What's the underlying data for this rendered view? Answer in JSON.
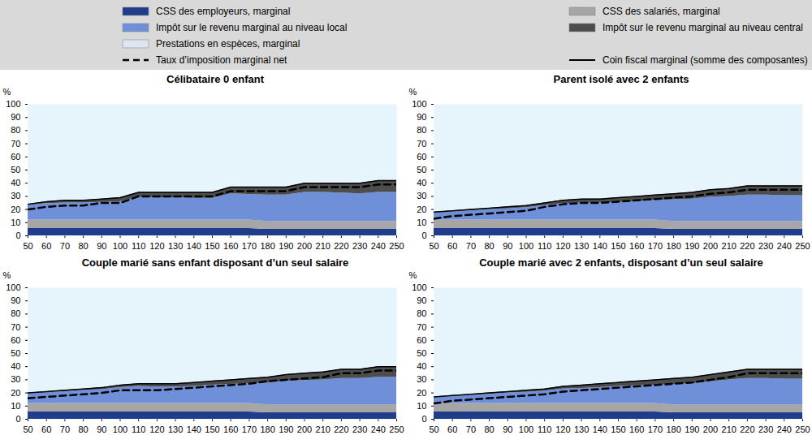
{
  "chart_data": [
    {
      "type": "area",
      "title": "Célibataire 0 enfant",
      "stacked": true,
      "grid": false,
      "y_label": "%",
      "x": [
        50,
        60,
        70,
        80,
        90,
        100,
        110,
        120,
        130,
        140,
        150,
        160,
        170,
        180,
        190,
        200,
        210,
        220,
        230,
        240,
        250
      ],
      "xlim": [
        50,
        250
      ],
      "xticks": [
        50,
        60,
        70,
        80,
        90,
        100,
        110,
        120,
        130,
        140,
        150,
        160,
        170,
        180,
        190,
        200,
        210,
        220,
        230,
        240,
        250
      ],
      "ylim": [
        0,
        100
      ],
      "yticks": [
        0,
        10,
        20,
        30,
        40,
        50,
        60,
        70,
        80,
        90,
        100
      ],
      "series": [
        {
          "name": "CSS des employeurs, marginal",
          "type": "area",
          "color": "#1f3d8a",
          "values": [
            5.5,
            5.5,
            5.5,
            5.5,
            5.5,
            5.5,
            5.5,
            5.5,
            5.5,
            5.5,
            5.5,
            5.5,
            5.5,
            5,
            5,
            5,
            5,
            5,
            5,
            5,
            5
          ]
        },
        {
          "name": "CSS des salariés, marginal",
          "type": "area",
          "color": "#a6a6a6",
          "values": [
            6.5,
            6.5,
            6.5,
            6.5,
            6.5,
            6.5,
            6.5,
            6.5,
            6.5,
            6.5,
            6.5,
            6.5,
            6.5,
            6,
            6,
            6,
            6,
            6,
            6,
            6,
            6
          ]
        },
        {
          "name": "Impôt sur le revenu marginal au niveau local",
          "type": "area",
          "color": "#6f8fd8",
          "values": [
            11,
            12.5,
            13,
            13,
            13.5,
            14,
            17.5,
            17,
            17,
            16.5,
            16.5,
            20,
            19.5,
            20,
            20,
            22,
            22,
            21.5,
            21,
            22,
            22
          ]
        },
        {
          "name": "Impôt sur le revenu marginal au niveau central",
          "type": "area",
          "color": "#4d4d4d",
          "values": [
            1,
            1.5,
            2,
            2,
            2.5,
            3,
            3.5,
            4,
            4,
            4.5,
            4.5,
            5,
            5.5,
            6,
            6,
            7,
            7,
            7.5,
            8,
            9,
            9
          ]
        },
        {
          "name": "Prestations en espèces, marginal",
          "type": "area",
          "color": "#dde4f2",
          "values": [
            0,
            0,
            0,
            0,
            0,
            0,
            0,
            0,
            0,
            0,
            0,
            0,
            0,
            0,
            0,
            0,
            0,
            0,
            0,
            0,
            0
          ]
        },
        {
          "name": "Taux d’imposition marginal net",
          "type": "line",
          "line_style": "dashed",
          "color": "#000000",
          "values": [
            20,
            22,
            23,
            23,
            25,
            25,
            30,
            30,
            30,
            30,
            30,
            34,
            34,
            34,
            34,
            37,
            37,
            37,
            37,
            39,
            39
          ]
        },
        {
          "name": "Coin fiscal marginal (somme des composantes)",
          "type": "line",
          "line_style": "solid",
          "color": "#000000",
          "values": [
            24,
            26,
            27,
            27,
            28,
            29,
            33,
            33,
            33,
            33,
            33,
            37,
            37,
            37,
            37,
            40,
            40,
            40,
            40,
            42,
            42
          ]
        }
      ]
    },
    {
      "type": "area",
      "title": "Parent isolé avec 2 enfants",
      "stacked": true,
      "grid": false,
      "y_label": "%",
      "x": [
        50,
        60,
        70,
        80,
        90,
        100,
        110,
        120,
        130,
        140,
        150,
        160,
        170,
        180,
        190,
        200,
        210,
        220,
        230,
        240,
        250
      ],
      "xlim": [
        50,
        250
      ],
      "xticks": [
        50,
        60,
        70,
        80,
        90,
        100,
        110,
        120,
        130,
        140,
        150,
        160,
        170,
        180,
        190,
        200,
        210,
        220,
        230,
        240,
        250
      ],
      "ylim": [
        0,
        100
      ],
      "yticks": [
        0,
        10,
        20,
        30,
        40,
        50,
        60,
        70,
        80,
        90,
        100
      ],
      "series": [
        {
          "name": "CSS des employeurs, marginal",
          "type": "area",
          "color": "#1f3d8a",
          "values": [
            5.5,
            5.5,
            5.5,
            5.5,
            5.5,
            5.5,
            5.5,
            5.5,
            5.5,
            5.5,
            5.5,
            5.5,
            5.5,
            5,
            5,
            5,
            5,
            5,
            5,
            5,
            5
          ]
        },
        {
          "name": "CSS des salariés, marginal",
          "type": "area",
          "color": "#a6a6a6",
          "values": [
            6.5,
            6.5,
            6.5,
            6.5,
            6.5,
            6.5,
            6.5,
            6.5,
            6.5,
            6.5,
            6.5,
            6.5,
            6.5,
            6,
            6,
            6,
            6,
            6,
            6,
            6,
            6
          ]
        },
        {
          "name": "Impôt sur le revenu marginal au niveau local",
          "type": "area",
          "color": "#6f8fd8",
          "values": [
            5.5,
            6.5,
            7,
            8,
            8.5,
            9.5,
            11,
            12.5,
            13,
            13,
            13.5,
            14,
            15,
            16.5,
            17,
            18.5,
            19,
            20,
            20,
            19.5,
            19.5
          ]
        },
        {
          "name": "Impôt sur le revenu marginal au niveau central",
          "type": "area",
          "color": "#4d4d4d",
          "values": [
            0.5,
            0.5,
            1,
            1,
            1.5,
            1.5,
            2,
            2.5,
            3,
            3,
            3.5,
            4,
            4,
            4.5,
            5,
            5.5,
            6,
            7,
            7,
            7.5,
            7.5
          ]
        },
        {
          "name": "Prestations en espèces, marginal",
          "type": "area",
          "color": "#dde4f2",
          "values": [
            0,
            0,
            0,
            0,
            0,
            0,
            0,
            0,
            0,
            0,
            0,
            0,
            0,
            0,
            0,
            0,
            0,
            0,
            0,
            0,
            0
          ]
        },
        {
          "name": "Taux d’imposition marginal net",
          "type": "line",
          "line_style": "dashed",
          "color": "#000000",
          "values": [
            13,
            15,
            16,
            17,
            18,
            19,
            22,
            24,
            25,
            25,
            26,
            27,
            28,
            29,
            30,
            32,
            33,
            35,
            35,
            35,
            35
          ]
        },
        {
          "name": "Coin fiscal marginal (somme des composantes)",
          "type": "line",
          "line_style": "solid",
          "color": "#000000",
          "values": [
            18,
            19,
            20,
            21,
            22,
            23,
            25,
            27,
            28,
            28,
            29,
            30,
            31,
            32,
            33,
            35,
            36,
            38,
            38,
            38,
            38
          ]
        }
      ]
    },
    {
      "type": "area",
      "title": "Couple marié sans enfant disposant d’un seul salaire",
      "stacked": true,
      "grid": false,
      "y_label": "%",
      "x": [
        50,
        60,
        70,
        80,
        90,
        100,
        110,
        120,
        130,
        140,
        150,
        160,
        170,
        180,
        190,
        200,
        210,
        220,
        230,
        240,
        250
      ],
      "xlim": [
        50,
        250
      ],
      "xticks": [
        50,
        60,
        70,
        80,
        90,
        100,
        110,
        120,
        130,
        140,
        150,
        160,
        170,
        180,
        190,
        200,
        210,
        220,
        230,
        240,
        250
      ],
      "ylim": [
        0,
        100
      ],
      "yticks": [
        0,
        10,
        20,
        30,
        40,
        50,
        60,
        70,
        80,
        90,
        100
      ],
      "series": [
        {
          "name": "CSS des employeurs, marginal",
          "type": "area",
          "color": "#1f3d8a",
          "values": [
            5.5,
            5.5,
            5.5,
            5.5,
            5.5,
            5.5,
            5.5,
            5.5,
            5.5,
            5.5,
            5.5,
            5.5,
            5.5,
            5,
            5,
            5,
            5,
            5,
            5,
            5,
            5
          ]
        },
        {
          "name": "CSS des salariés, marginal",
          "type": "area",
          "color": "#a6a6a6",
          "values": [
            6.5,
            6.5,
            6.5,
            6.5,
            6.5,
            6.5,
            6.5,
            6.5,
            6.5,
            6.5,
            6.5,
            6.5,
            6.5,
            6,
            6,
            6,
            6,
            6,
            6,
            6,
            6
          ]
        },
        {
          "name": "Impôt sur le revenu marginal au niveau local",
          "type": "area",
          "color": "#6f8fd8",
          "values": [
            7.5,
            8.5,
            9,
            10,
            10.5,
            12,
            13,
            12.5,
            12.5,
            13,
            14,
            14.5,
            15,
            16.5,
            18,
            18.5,
            19,
            20,
            20,
            21,
            21
          ]
        },
        {
          "name": "Impôt sur le revenu marginal au niveau central",
          "type": "area",
          "color": "#4d4d4d",
          "values": [
            0.5,
            0.5,
            1,
            1,
            1.5,
            2,
            2,
            2.5,
            2.5,
            3,
            3,
            3.5,
            4,
            4.5,
            5,
            5.5,
            6,
            7,
            7,
            8,
            8
          ]
        },
        {
          "name": "Prestations en espèces, marginal",
          "type": "area",
          "color": "#dde4f2",
          "values": [
            0,
            0,
            0,
            0,
            0,
            0,
            0,
            0,
            0,
            0,
            0,
            0,
            0,
            0,
            0,
            0,
            0,
            0,
            0,
            0,
            0
          ]
        },
        {
          "name": "Taux d’imposition marginal net",
          "type": "line",
          "line_style": "dashed",
          "color": "#000000",
          "values": [
            16,
            17,
            18,
            19,
            20,
            22,
            22,
            22,
            23,
            24,
            25,
            26,
            27,
            29,
            30,
            31,
            32,
            35,
            35,
            37,
            37
          ]
        },
        {
          "name": "Coin fiscal marginal (somme des composantes)",
          "type": "line",
          "line_style": "solid",
          "color": "#000000",
          "values": [
            20,
            21,
            22,
            23,
            24,
            26,
            27,
            27,
            27,
            28,
            29,
            30,
            31,
            32,
            34,
            35,
            36,
            38,
            38,
            40,
            40
          ]
        }
      ]
    },
    {
      "type": "area",
      "title": "Couple marié avec 2 enfants, disposant d’un seul salaire",
      "stacked": true,
      "grid": false,
      "y_label": "%",
      "x": [
        50,
        60,
        70,
        80,
        90,
        100,
        110,
        120,
        130,
        140,
        150,
        160,
        170,
        180,
        190,
        200,
        210,
        220,
        230,
        240,
        250
      ],
      "xlim": [
        50,
        250
      ],
      "xticks": [
        50,
        60,
        70,
        80,
        90,
        100,
        110,
        120,
        130,
        140,
        150,
        160,
        170,
        180,
        190,
        200,
        210,
        220,
        230,
        240,
        250
      ],
      "ylim": [
        0,
        100
      ],
      "yticks": [
        0,
        10,
        20,
        30,
        40,
        50,
        60,
        70,
        80,
        90,
        100
      ],
      "series": [
        {
          "name": "CSS des employeurs, marginal",
          "type": "area",
          "color": "#1f3d8a",
          "values": [
            5.5,
            5.5,
            5.5,
            5.5,
            5.5,
            5.5,
            5.5,
            5.5,
            5.5,
            5.5,
            5.5,
            5.5,
            5.5,
            5,
            5,
            5,
            5,
            5,
            5,
            5,
            5
          ]
        },
        {
          "name": "CSS des salariés, marginal",
          "type": "area",
          "color": "#a6a6a6",
          "values": [
            6.5,
            6.5,
            6.5,
            6.5,
            6.5,
            6.5,
            6.5,
            6.5,
            6.5,
            6.5,
            6.5,
            6.5,
            6.5,
            6,
            6,
            6,
            6,
            6,
            6,
            6,
            6
          ]
        },
        {
          "name": "Impôt sur le revenu marginal au niveau local",
          "type": "area",
          "color": "#6f8fd8",
          "values": [
            4.5,
            5.5,
            6.5,
            7,
            8,
            8.5,
            9.5,
            11,
            11.5,
            12,
            13,
            13.5,
            14,
            15.5,
            16,
            17.5,
            19,
            20,
            20,
            19.5,
            19.5
          ]
        },
        {
          "name": "Impôt sur le revenu marginal au niveau central",
          "type": "area",
          "color": "#4d4d4d",
          "values": [
            0.5,
            0.5,
            0.5,
            1,
            1,
            1.5,
            1.5,
            2,
            2.5,
            3,
            3,
            3.5,
            4,
            4.5,
            5,
            5.5,
            6,
            7,
            7,
            7.5,
            7.5
          ]
        },
        {
          "name": "Prestations en espèces, marginal",
          "type": "area",
          "color": "#dde4f2",
          "values": [
            0,
            0,
            0,
            0,
            0,
            0,
            0,
            0,
            0,
            0,
            0,
            0,
            0,
            0,
            0,
            0,
            0,
            0,
            0,
            0,
            0
          ]
        },
        {
          "name": "Taux d’imposition marginal net",
          "type": "line",
          "line_style": "dashed",
          "color": "#000000",
          "values": [
            12,
            14,
            15,
            16,
            17,
            18,
            19,
            21,
            22,
            23,
            24,
            25,
            26,
            27,
            28,
            30,
            32,
            35,
            35,
            35,
            35
          ]
        },
        {
          "name": "Coin fiscal marginal (somme des composantes)",
          "type": "line",
          "line_style": "solid",
          "color": "#000000",
          "values": [
            17,
            18,
            19,
            20,
            21,
            22,
            23,
            25,
            26,
            27,
            28,
            29,
            30,
            31,
            32,
            34,
            36,
            38,
            38,
            38,
            38
          ]
        }
      ]
    }
  ]
}
